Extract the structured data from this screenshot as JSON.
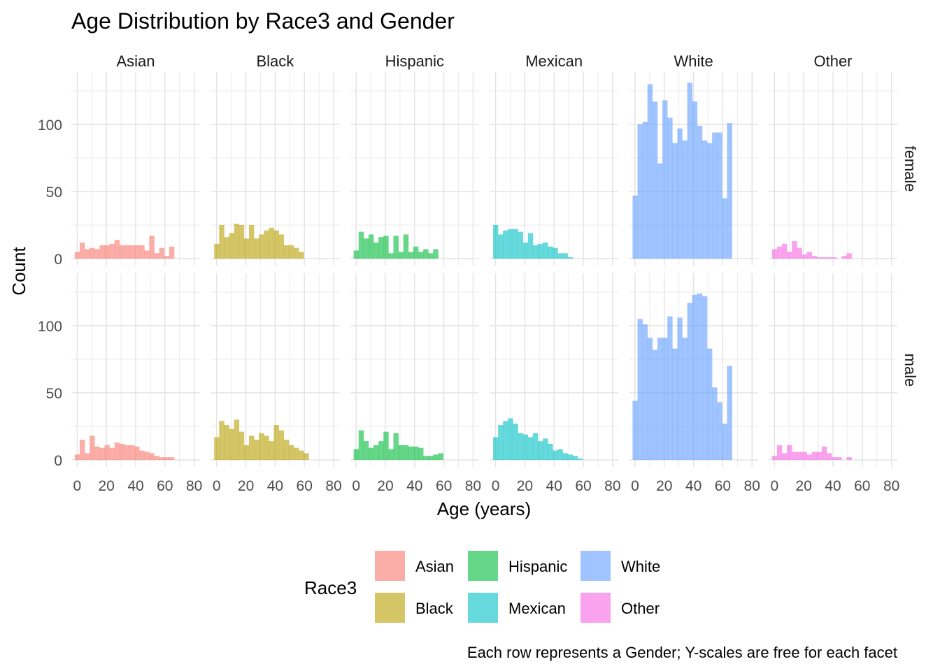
{
  "chart_data": {
    "type": "bar",
    "title": "Age Distribution by Race3 and Gender",
    "xlabel": "Age (years)",
    "ylabel": "Count",
    "caption": "Each row represents a Gender; Y-scales are free for each facet",
    "facet_columns": [
      "Asian",
      "Black",
      "Hispanic",
      "Mexican",
      "White",
      "Other"
    ],
    "facet_rows": [
      "female",
      "male"
    ],
    "xlim": [
      -4,
      84
    ],
    "ylim": [
      0,
      136
    ],
    "x_ticks": [
      0,
      20,
      40,
      60,
      80
    ],
    "y_ticks": [
      0,
      50,
      100
    ],
    "bin_width": 3.4,
    "bin_starts": [
      -1.7,
      1.7,
      5.1,
      8.5,
      11.9,
      15.3,
      18.7,
      22.1,
      25.5,
      28.9,
      32.3,
      35.7,
      39.1,
      42.5,
      45.9,
      49.3,
      52.7,
      56.1,
      59.5,
      62.9,
      66.3,
      69.7,
      73.1,
      76.5,
      79.9
    ],
    "grid": true,
    "legend_title": "Race3",
    "legend_position": "bottom",
    "legend_entries": [
      "Asian",
      "Black",
      "Hispanic",
      "Mexican",
      "White",
      "Other"
    ],
    "colors": {
      "Asian": "#F8766D",
      "Black": "#B79F00",
      "Hispanic": "#00BA38",
      "Mexican": "#00BFC4",
      "White": "#619CFF",
      "Other": "#F564E3"
    },
    "series": [
      {
        "name": "Asian",
        "gender": "female",
        "values": [
          5,
          12,
          7,
          8,
          7,
          10,
          10,
          11,
          14,
          10,
          10,
          10,
          10,
          10,
          6,
          17,
          4,
          8,
          2,
          9
        ]
      },
      {
        "name": "Black",
        "gender": "female",
        "values": [
          11,
          25,
          16,
          19,
          26,
          25,
          15,
          25,
          15,
          18,
          21,
          23,
          21,
          18,
          10,
          10,
          8,
          5
        ]
      },
      {
        "name": "Hispanic",
        "gender": "female",
        "values": [
          6,
          20,
          15,
          18,
          12,
          16,
          17,
          4,
          17,
          5,
          18,
          5,
          9,
          5,
          7,
          4,
          7
        ]
      },
      {
        "name": "Mexican",
        "gender": "female",
        "values": [
          25,
          18,
          21,
          22,
          22,
          20,
          12,
          19,
          10,
          11,
          12,
          9,
          8,
          4,
          4,
          1
        ]
      },
      {
        "name": "White",
        "gender": "female",
        "values": [
          47,
          100,
          102,
          130,
          117,
          71,
          118,
          105,
          86,
          97,
          88,
          131,
          117,
          99,
          88,
          86,
          94,
          94,
          45,
          101
        ]
      },
      {
        "name": "Other",
        "gender": "female",
        "values": [
          7,
          9,
          11,
          5,
          13,
          8,
          3,
          5,
          2,
          1,
          1,
          1,
          1,
          0,
          2,
          4
        ]
      },
      {
        "name": "Asian",
        "gender": "male",
        "values": [
          4,
          15,
          5,
          18,
          10,
          9,
          11,
          9,
          13,
          12,
          11,
          11,
          10,
          7,
          6,
          5,
          3,
          2,
          2,
          2
        ]
      },
      {
        "name": "Black",
        "gender": "male",
        "values": [
          17,
          29,
          26,
          23,
          30,
          21,
          11,
          18,
          15,
          20,
          18,
          14,
          26,
          22,
          15,
          11,
          9,
          7,
          5
        ]
      },
      {
        "name": "Hispanic",
        "gender": "male",
        "values": [
          8,
          22,
          14,
          9,
          11,
          14,
          21,
          8,
          20,
          11,
          11,
          10,
          10,
          9,
          3,
          3,
          4,
          5
        ]
      },
      {
        "name": "Mexican",
        "gender": "male",
        "values": [
          17,
          26,
          29,
          31,
          27,
          20,
          19,
          17,
          20,
          14,
          16,
          12,
          7,
          8,
          5,
          4,
          3,
          1
        ]
      },
      {
        "name": "White",
        "gender": "male",
        "values": [
          44,
          105,
          101,
          91,
          82,
          91,
          91,
          107,
          83,
          106,
          91,
          117,
          123,
          124,
          122,
          83,
          54,
          43,
          27,
          70
        ]
      },
      {
        "name": "Other",
        "gender": "male",
        "values": [
          3,
          11,
          5,
          11,
          6,
          6,
          6,
          4,
          6,
          6,
          10,
          5,
          2,
          2,
          0,
          2
        ]
      }
    ]
  }
}
